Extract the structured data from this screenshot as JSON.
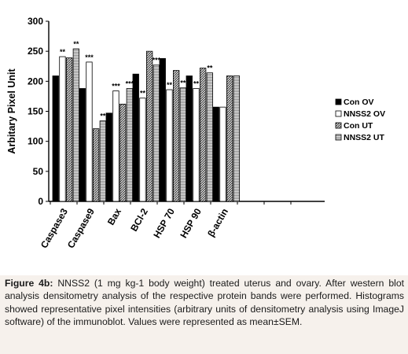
{
  "chart_data": {
    "type": "bar",
    "ylabel": "Arbitary Pixel Unit",
    "xlabel": "",
    "ylim": [
      0,
      300
    ],
    "yticks": [
      0,
      50,
      100,
      150,
      200,
      250,
      300
    ],
    "categories": [
      "Caspase3",
      "Caspase9",
      "Bax",
      "BCl-2",
      "HSP 70",
      "HSP 90",
      "β-actin"
    ],
    "series": [
      {
        "name": "Con OV",
        "values": [
          209,
          188,
          147,
          212,
          238,
          209,
          157
        ],
        "color": "#000000"
      },
      {
        "name": "NNSS2 OV",
        "values": [
          241,
          232,
          184,
          172,
          186,
          188,
          157
        ],
        "color": "#ffffff"
      },
      {
        "name": "Con UT",
        "values": [
          239,
          121,
          162,
          250,
          218,
          222,
          209
        ],
        "color": "#9a9a9a"
      },
      {
        "name": "NNSS2 UT",
        "values": [
          254,
          134,
          188,
          227,
          189,
          214,
          209
        ],
        "color": "#c4c4c4"
      }
    ],
    "annotations": [
      {
        "category": "Caspase3",
        "series": 1,
        "text": "**"
      },
      {
        "category": "Caspase3",
        "series": 3,
        "text": "**"
      },
      {
        "category": "Caspase9",
        "series": 1,
        "text": "***"
      },
      {
        "category": "Caspase9",
        "series": 3,
        "text": "**"
      },
      {
        "category": "Bax",
        "series": 1,
        "text": "***"
      },
      {
        "category": "Bax",
        "series": 3,
        "text": "***"
      },
      {
        "category": "BCl-2",
        "series": 1,
        "text": "**"
      },
      {
        "category": "BCl-2",
        "series": 3,
        "text": "***"
      },
      {
        "category": "HSP 70",
        "series": 1,
        "text": "**"
      },
      {
        "category": "HSP 70",
        "series": 3,
        "text": "**"
      },
      {
        "category": "HSP 90",
        "series": 1,
        "text": "**"
      },
      {
        "category": "HSP 90",
        "series": 3,
        "text": "**"
      }
    ],
    "legend_position": "right",
    "grid": false
  },
  "caption": {
    "label": "Figure 4b:",
    "text": " NNSS2 (1 mg kg-1 body weight) treated uterus and ovary. After western blot analysis densitometry analysis of the respective protein bands were performed. Histograms showed representative pixel intensities (arbitrary units of densitometry analysis using ImageJ software) of the immunoblot. Values were represented as mean±SEM."
  }
}
